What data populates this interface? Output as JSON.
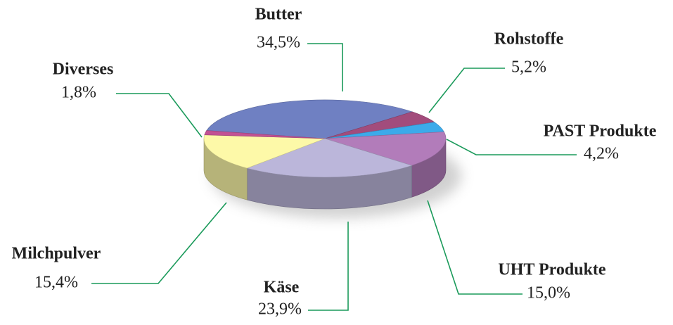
{
  "chart_data": {
    "type": "pie",
    "categories": [
      "Butter",
      "Rohstoffe",
      "PAST Produkte",
      "UHT Produkte",
      "Käse",
      "Milchpulver",
      "Diverses"
    ],
    "values": [
      34.5,
      5.2,
      4.2,
      15.0,
      23.9,
      15.4,
      1.8
    ],
    "value_labels": [
      "34,5%",
      "5,2%",
      "4,2%",
      "15,0%",
      "23,9%",
      "15,4%",
      "1,8%"
    ],
    "colors": [
      "#6f80c2",
      "#a24c7c",
      "#3caaea",
      "#b27cba",
      "#bbb6da",
      "#fdf9a8",
      "#c25294"
    ]
  }
}
